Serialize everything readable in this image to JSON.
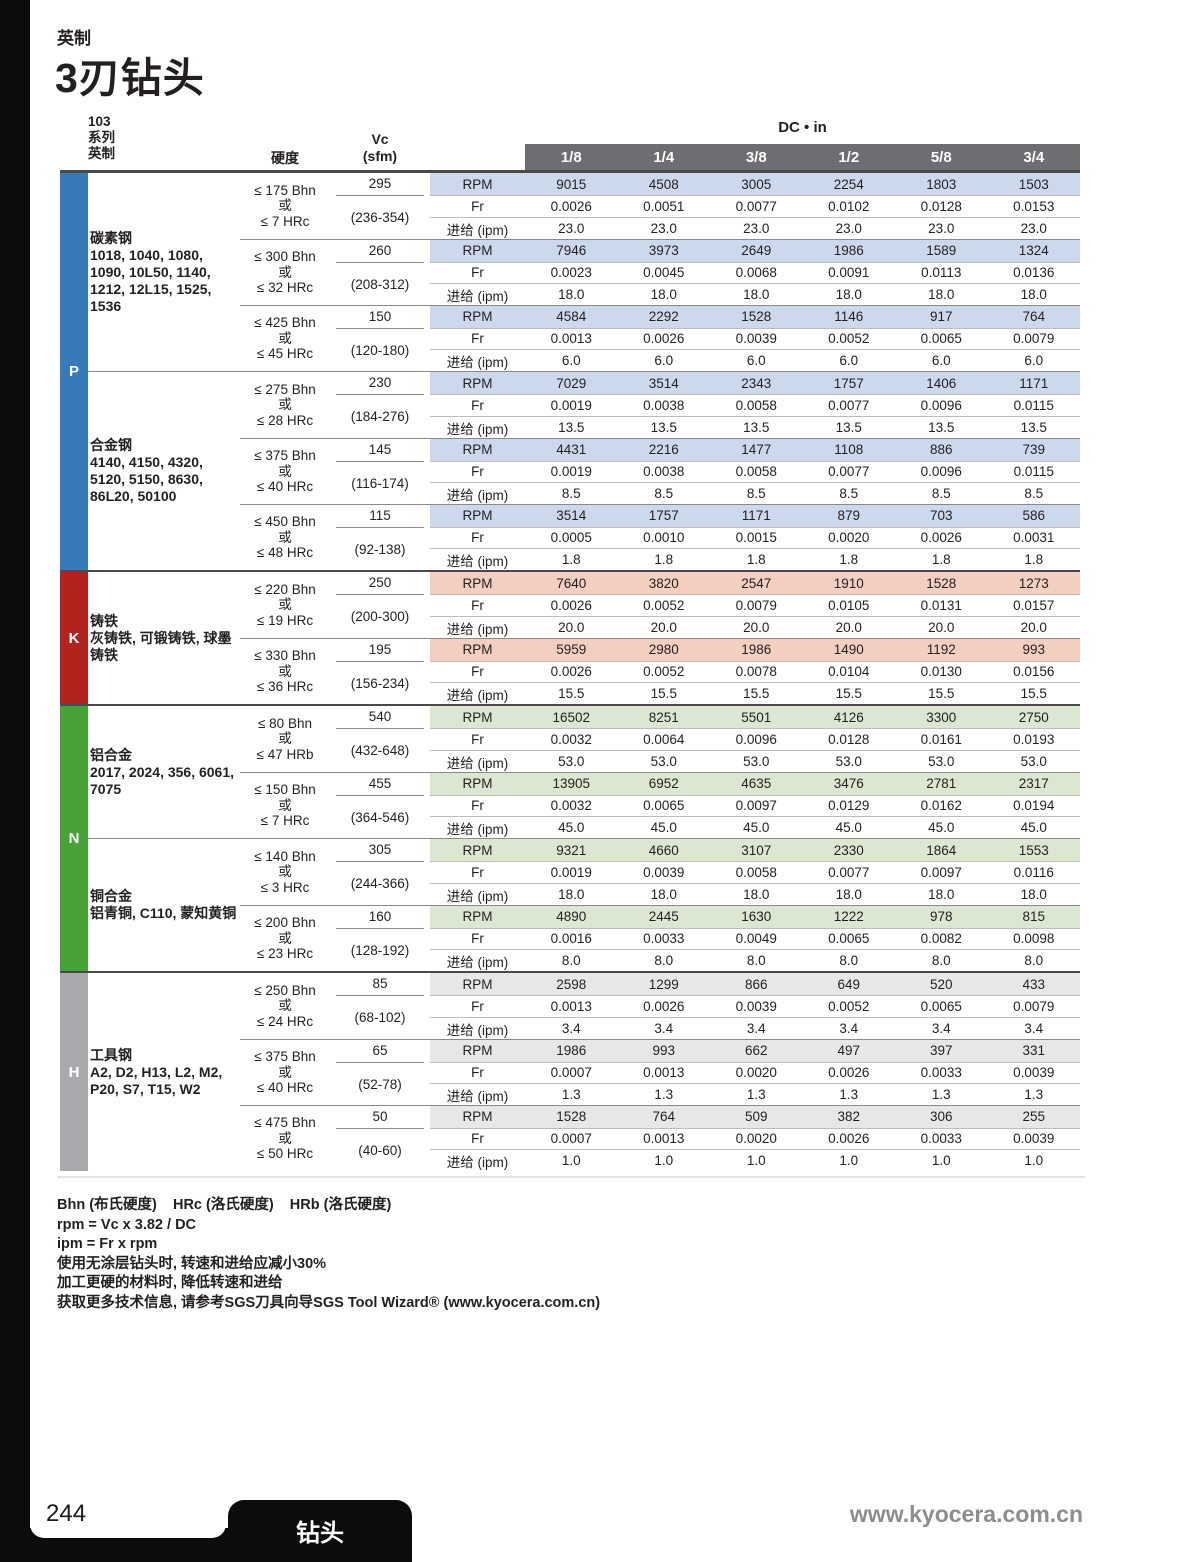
{
  "page": {
    "subtitle": "英制",
    "title": "3刃钻头",
    "page_number": "244",
    "footer_tab": "钻头",
    "website": "www.kyocera.com.cn"
  },
  "colors": {
    "header_bar_gray": "#6d6e71",
    "section_p_blue": "#3879b8",
    "section_k_red": "#b2231d",
    "section_n_green": "#47a237",
    "section_h_gray": "#a8aaad"
  },
  "table": {
    "series_label": "103\n系列\n英制",
    "hardness_label": "硬度",
    "vc_label": "Vc\n(sfm)",
    "dc_label": "DC • in",
    "diameters": [
      "1/8",
      "1/4",
      "3/8",
      "1/2",
      "5/8",
      "3/4"
    ],
    "row_labels": {
      "rpm": "RPM",
      "fr": "Fr",
      "ipm": "进给 (ipm)"
    },
    "sections": [
      {
        "code": "P",
        "color": "#3879b8",
        "tint": "#ccd9ec",
        "materials": [
          {
            "name": "碳素钢",
            "grades": "1018, 1040, 1080, 1090, 10L50, 1140, 1212, 12L15, 1525, 1536",
            "rows": [
              {
                "hardness": "≤ 175 Bhn\n或\n≤ 7 HRc",
                "vc": "295",
                "vc_range": "(236-354)",
                "rpm": [
                  "9015",
                  "4508",
                  "3005",
                  "2254",
                  "1803",
                  "1503"
                ],
                "fr": [
                  "0.0026",
                  "0.0051",
                  "0.0077",
                  "0.0102",
                  "0.0128",
                  "0.0153"
                ],
                "ipm": [
                  "23.0",
                  "23.0",
                  "23.0",
                  "23.0",
                  "23.0",
                  "23.0"
                ]
              },
              {
                "hardness": "≤ 300 Bhn\n或\n≤ 32 HRc",
                "vc": "260",
                "vc_range": "(208-312)",
                "rpm": [
                  "7946",
                  "3973",
                  "2649",
                  "1986",
                  "1589",
                  "1324"
                ],
                "fr": [
                  "0.0023",
                  "0.0045",
                  "0.0068",
                  "0.0091",
                  "0.0113",
                  "0.0136"
                ],
                "ipm": [
                  "18.0",
                  "18.0",
                  "18.0",
                  "18.0",
                  "18.0",
                  "18.0"
                ]
              },
              {
                "hardness": "≤ 425 Bhn\n或\n≤ 45 HRc",
                "vc": "150",
                "vc_range": "(120-180)",
                "rpm": [
                  "4584",
                  "2292",
                  "1528",
                  "1146",
                  "917",
                  "764"
                ],
                "fr": [
                  "0.0013",
                  "0.0026",
                  "0.0039",
                  "0.0052",
                  "0.0065",
                  "0.0079"
                ],
                "ipm": [
                  "6.0",
                  "6.0",
                  "6.0",
                  "6.0",
                  "6.0",
                  "6.0"
                ]
              }
            ]
          },
          {
            "name": "合金钢",
            "grades": "4140, 4150, 4320, 5120, 5150, 8630, 86L20, 50100",
            "rows": [
              {
                "hardness": "≤ 275 Bhn\n或\n≤ 28 HRc",
                "vc": "230",
                "vc_range": "(184-276)",
                "rpm": [
                  "7029",
                  "3514",
                  "2343",
                  "1757",
                  "1406",
                  "1171"
                ],
                "fr": [
                  "0.0019",
                  "0.0038",
                  "0.0058",
                  "0.0077",
                  "0.0096",
                  "0.0115"
                ],
                "ipm": [
                  "13.5",
                  "13.5",
                  "13.5",
                  "13.5",
                  "13.5",
                  "13.5"
                ]
              },
              {
                "hardness": "≤ 375 Bhn\n或\n≤ 40 HRc",
                "vc": "145",
                "vc_range": "(116-174)",
                "rpm": [
                  "4431",
                  "2216",
                  "1477",
                  "1108",
                  "886",
                  "739"
                ],
                "fr": [
                  "0.0019",
                  "0.0038",
                  "0.0058",
                  "0.0077",
                  "0.0096",
                  "0.0115"
                ],
                "ipm": [
                  "8.5",
                  "8.5",
                  "8.5",
                  "8.5",
                  "8.5",
                  "8.5"
                ]
              },
              {
                "hardness": "≤ 450 Bhn\n或\n≤ 48 HRc",
                "vc": "115",
                "vc_range": "(92-138)",
                "rpm": [
                  "3514",
                  "1757",
                  "1171",
                  "879",
                  "703",
                  "586"
                ],
                "fr": [
                  "0.0005",
                  "0.0010",
                  "0.0015",
                  "0.0020",
                  "0.0026",
                  "0.0031"
                ],
                "ipm": [
                  "1.8",
                  "1.8",
                  "1.8",
                  "1.8",
                  "1.8",
                  "1.8"
                ]
              }
            ]
          }
        ]
      },
      {
        "code": "K",
        "color": "#b2231d",
        "tint": "#f2cfc1",
        "materials": [
          {
            "name": "铸铁",
            "grades": "灰铸铁, 可锻铸铁, 球墨铸铁",
            "rows": [
              {
                "hardness": "≤ 220 Bhn\n或\n≤ 19 HRc",
                "vc": "250",
                "vc_range": "(200-300)",
                "rpm": [
                  "7640",
                  "3820",
                  "2547",
                  "1910",
                  "1528",
                  "1273"
                ],
                "fr": [
                  "0.0026",
                  "0.0052",
                  "0.0079",
                  "0.0105",
                  "0.0131",
                  "0.0157"
                ],
                "ipm": [
                  "20.0",
                  "20.0",
                  "20.0",
                  "20.0",
                  "20.0",
                  "20.0"
                ]
              },
              {
                "hardness": "≤ 330 Bhn\n或\n≤ 36 HRc",
                "vc": "195",
                "vc_range": "(156-234)",
                "rpm": [
                  "5959",
                  "2980",
                  "1986",
                  "1490",
                  "1192",
                  "993"
                ],
                "fr": [
                  "0.0026",
                  "0.0052",
                  "0.0078",
                  "0.0104",
                  "0.0130",
                  "0.0156"
                ],
                "ipm": [
                  "15.5",
                  "15.5",
                  "15.5",
                  "15.5",
                  "15.5",
                  "15.5"
                ]
              }
            ]
          }
        ]
      },
      {
        "code": "N",
        "color": "#47a237",
        "tint": "#dbe7d1",
        "materials": [
          {
            "name": "铝合金",
            "grades": "2017, 2024, 356, 6061, 7075",
            "rows": [
              {
                "hardness": "≤ 80 Bhn\n或\n≤ 47 HRb",
                "vc": "540",
                "vc_range": "(432-648)",
                "rpm": [
                  "16502",
                  "8251",
                  "5501",
                  "4126",
                  "3300",
                  "2750"
                ],
                "fr": [
                  "0.0032",
                  "0.0064",
                  "0.0096",
                  "0.0128",
                  "0.0161",
                  "0.0193"
                ],
                "ipm": [
                  "53.0",
                  "53.0",
                  "53.0",
                  "53.0",
                  "53.0",
                  "53.0"
                ]
              },
              {
                "hardness": "≤ 150 Bhn\n或\n≤ 7 HRc",
                "vc": "455",
                "vc_range": "(364-546)",
                "rpm": [
                  "13905",
                  "6952",
                  "4635",
                  "3476",
                  "2781",
                  "2317"
                ],
                "fr": [
                  "0.0032",
                  "0.0065",
                  "0.0097",
                  "0.0129",
                  "0.0162",
                  "0.0194"
                ],
                "ipm": [
                  "45.0",
                  "45.0",
                  "45.0",
                  "45.0",
                  "45.0",
                  "45.0"
                ]
              }
            ]
          },
          {
            "name": "铜合金",
            "grades": "铝青铜, C110, 蒙知黄铜",
            "rows": [
              {
                "hardness": "≤ 140 Bhn\n或\n≤ 3 HRc",
                "vc": "305",
                "vc_range": "(244-366)",
                "rpm": [
                  "9321",
                  "4660",
                  "3107",
                  "2330",
                  "1864",
                  "1553"
                ],
                "fr": [
                  "0.0019",
                  "0.0039",
                  "0.0058",
                  "0.0077",
                  "0.0097",
                  "0.0116"
                ],
                "ipm": [
                  "18.0",
                  "18.0",
                  "18.0",
                  "18.0",
                  "18.0",
                  "18.0"
                ]
              },
              {
                "hardness": "≤ 200 Bhn\n或\n≤ 23 HRc",
                "vc": "160",
                "vc_range": "(128-192)",
                "rpm": [
                  "4890",
                  "2445",
                  "1630",
                  "1222",
                  "978",
                  "815"
                ],
                "fr": [
                  "0.0016",
                  "0.0033",
                  "0.0049",
                  "0.0065",
                  "0.0082",
                  "0.0098"
                ],
                "ipm": [
                  "8.0",
                  "8.0",
                  "8.0",
                  "8.0",
                  "8.0",
                  "8.0"
                ]
              }
            ]
          }
        ]
      },
      {
        "code": "H",
        "color": "#a8aaad",
        "tint": "#e6e7e8",
        "materials": [
          {
            "name": "工具钢",
            "grades": "A2, D2, H13, L2, M2, P20, S7, T15, W2",
            "rows": [
              {
                "hardness": "≤ 250 Bhn\n或\n≤ 24 HRc",
                "vc": "85",
                "vc_range": "(68-102)",
                "rpm": [
                  "2598",
                  "1299",
                  "866",
                  "649",
                  "520",
                  "433"
                ],
                "fr": [
                  "0.0013",
                  "0.0026",
                  "0.0039",
                  "0.0052",
                  "0.0065",
                  "0.0079"
                ],
                "ipm": [
                  "3.4",
                  "3.4",
                  "3.4",
                  "3.4",
                  "3.4",
                  "3.4"
                ]
              },
              {
                "hardness": "≤ 375 Bhn\n或\n≤ 40 HRc",
                "vc": "65",
                "vc_range": "(52-78)",
                "rpm": [
                  "1986",
                  "993",
                  "662",
                  "497",
                  "397",
                  "331"
                ],
                "fr": [
                  "0.0007",
                  "0.0013",
                  "0.0020",
                  "0.0026",
                  "0.0033",
                  "0.0039"
                ],
                "ipm": [
                  "1.3",
                  "1.3",
                  "1.3",
                  "1.3",
                  "1.3",
                  "1.3"
                ]
              },
              {
                "hardness": "≤ 475 Bhn\n或\n≤ 50 HRc",
                "vc": "50",
                "vc_range": "(40-60)",
                "rpm": [
                  "1528",
                  "764",
                  "509",
                  "382",
                  "306",
                  "255"
                ],
                "fr": [
                  "0.0007",
                  "0.0013",
                  "0.0020",
                  "0.0026",
                  "0.0033",
                  "0.0039"
                ],
                "ipm": [
                  "1.0",
                  "1.0",
                  "1.0",
                  "1.0",
                  "1.0",
                  "1.0"
                ]
              }
            ]
          }
        ]
      }
    ]
  },
  "notes": [
    "Bhn (布氏硬度)    HRc (洛氏硬度)    HRb (洛氏硬度)",
    "rpm = Vc x 3.82 / DC",
    "ipm = Fr x rpm",
    "使用无涂层钻头时, 转速和进给应减小30%",
    "加工更硬的材料时, 降低转速和进给",
    "获取更多技术信息, 请参考SGS刀具向导SGS Tool Wizard® (www.kyocera.com.cn)"
  ]
}
